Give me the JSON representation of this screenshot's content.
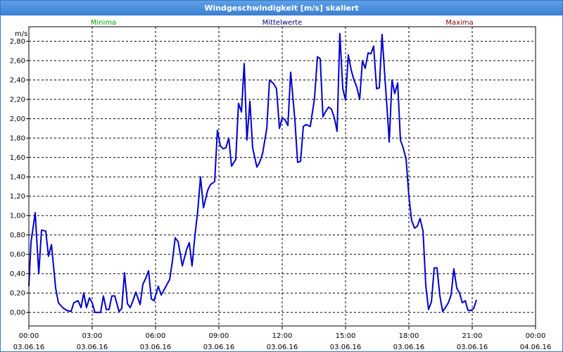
{
  "window": {
    "title": "Windgeschwindigkeit [m/s] skaliert"
  },
  "chart_data": {
    "type": "line",
    "title": "Windgeschwindigkeit [m/s] skaliert",
    "ylabel": "m/s",
    "xlabel": "",
    "legend": {
      "placement": "top",
      "entries": [
        {
          "name": "Minima",
          "color": "#00a000"
        },
        {
          "name": "Mittelwerte",
          "color": "#00008b"
        },
        {
          "name": "Maxima",
          "color": "#8b0000"
        }
      ]
    },
    "grid": true,
    "ylim": [
      -0.14,
      2.95
    ],
    "xlim": [
      0,
      24
    ],
    "y_ticks": [
      "0,00",
      "0,20",
      "0,40",
      "0,60",
      "0,80",
      "1,00",
      "1,20",
      "1,40",
      "1,60",
      "1,80",
      "2,00",
      "2,20",
      "2,40",
      "2,60",
      "2,80"
    ],
    "x_ticks": [
      {
        "time": "00:00",
        "date": "03.06.16"
      },
      {
        "time": "03:00",
        "date": "03.06.16"
      },
      {
        "time": "06:00",
        "date": "03.06.16"
      },
      {
        "time": "09:00",
        "date": "03.06.16"
      },
      {
        "time": "12:00",
        "date": "03.06.16"
      },
      {
        "time": "15:00",
        "date": "03.06.16"
      },
      {
        "time": "18:00",
        "date": "03.06.16"
      },
      {
        "time": "21:00",
        "date": "03.06.16"
      },
      {
        "time": "00:00",
        "date": "04.06.16"
      }
    ],
    "series": [
      {
        "name": "Mittelwerte",
        "color": "#0000cc",
        "points": [
          [
            0.0,
            0.27
          ],
          [
            0.1,
            0.72
          ],
          [
            0.3,
            1.03
          ],
          [
            0.47,
            0.4
          ],
          [
            0.6,
            0.85
          ],
          [
            0.8,
            0.84
          ],
          [
            0.93,
            0.58
          ],
          [
            1.07,
            0.7
          ],
          [
            1.27,
            0.25
          ],
          [
            1.4,
            0.1
          ],
          [
            1.6,
            0.05
          ],
          [
            1.8,
            0.02
          ],
          [
            2.0,
            0.01
          ],
          [
            2.13,
            0.1
          ],
          [
            2.33,
            0.12
          ],
          [
            2.47,
            0.05
          ],
          [
            2.6,
            0.2
          ],
          [
            2.73,
            0.05
          ],
          [
            2.87,
            0.15
          ],
          [
            3.0,
            0.1
          ],
          [
            3.13,
            0.0
          ],
          [
            3.4,
            0.0
          ],
          [
            3.53,
            0.17
          ],
          [
            3.67,
            0.03
          ],
          [
            3.8,
            0.03
          ],
          [
            3.93,
            0.17
          ],
          [
            4.07,
            0.17
          ],
          [
            4.27,
            0.01
          ],
          [
            4.4,
            0.04
          ],
          [
            4.53,
            0.41
          ],
          [
            4.67,
            0.09
          ],
          [
            4.8,
            0.05
          ],
          [
            4.93,
            0.12
          ],
          [
            5.07,
            0.21
          ],
          [
            5.27,
            0.08
          ],
          [
            5.4,
            0.29
          ],
          [
            5.53,
            0.35
          ],
          [
            5.67,
            0.43
          ],
          [
            5.8,
            0.14
          ],
          [
            5.93,
            0.12
          ],
          [
            6.13,
            0.27
          ],
          [
            6.27,
            0.18
          ],
          [
            6.47,
            0.26
          ],
          [
            6.67,
            0.34
          ],
          [
            6.8,
            0.53
          ],
          [
            6.93,
            0.77
          ],
          [
            7.07,
            0.73
          ],
          [
            7.27,
            0.48
          ],
          [
            7.47,
            0.65
          ],
          [
            7.6,
            0.72
          ],
          [
            7.73,
            0.48
          ],
          [
            7.87,
            0.8
          ],
          [
            8.0,
            1.05
          ],
          [
            8.13,
            1.4
          ],
          [
            8.27,
            1.08
          ],
          [
            8.47,
            1.26
          ],
          [
            8.6,
            1.32
          ],
          [
            8.8,
            1.35
          ],
          [
            8.93,
            1.88
          ],
          [
            9.07,
            1.72
          ],
          [
            9.2,
            1.69
          ],
          [
            9.33,
            1.7
          ],
          [
            9.47,
            1.8
          ],
          [
            9.6,
            1.51
          ],
          [
            9.8,
            1.58
          ],
          [
            9.93,
            2.16
          ],
          [
            10.07,
            2.07
          ],
          [
            10.2,
            2.57
          ],
          [
            10.33,
            1.78
          ],
          [
            10.47,
            2.18
          ],
          [
            10.6,
            1.7
          ],
          [
            10.8,
            1.5
          ],
          [
            10.93,
            1.55
          ],
          [
            11.07,
            1.64
          ],
          [
            11.27,
            1.9
          ],
          [
            11.4,
            2.4
          ],
          [
            11.6,
            2.36
          ],
          [
            11.73,
            2.31
          ],
          [
            11.87,
            1.9
          ],
          [
            12.0,
            2.01
          ],
          [
            12.13,
            1.99
          ],
          [
            12.27,
            1.93
          ],
          [
            12.4,
            2.48
          ],
          [
            12.6,
            1.99
          ],
          [
            12.73,
            1.55
          ],
          [
            12.87,
            1.56
          ],
          [
            13.0,
            1.92
          ],
          [
            13.13,
            1.94
          ],
          [
            13.33,
            1.92
          ],
          [
            13.53,
            2.21
          ],
          [
            13.67,
            2.64
          ],
          [
            13.8,
            2.62
          ],
          [
            13.93,
            2.02
          ],
          [
            14.07,
            2.08
          ],
          [
            14.2,
            2.12
          ],
          [
            14.33,
            2.1
          ],
          [
            14.47,
            2.01
          ],
          [
            14.6,
            1.87
          ],
          [
            14.73,
            2.88
          ],
          [
            14.87,
            2.31
          ],
          [
            15.0,
            2.19
          ],
          [
            15.13,
            2.66
          ],
          [
            15.27,
            2.5
          ],
          [
            15.4,
            2.4
          ],
          [
            15.53,
            2.33
          ],
          [
            15.67,
            2.2
          ],
          [
            15.8,
            2.6
          ],
          [
            15.93,
            2.52
          ],
          [
            16.07,
            2.68
          ],
          [
            16.2,
            2.67
          ],
          [
            16.33,
            2.75
          ],
          [
            16.47,
            2.31
          ],
          [
            16.6,
            2.32
          ],
          [
            16.73,
            2.87
          ],
          [
            16.87,
            2.41
          ],
          [
            17.0,
            2.0
          ],
          [
            17.07,
            1.76
          ],
          [
            17.2,
            2.4
          ],
          [
            17.33,
            2.26
          ],
          [
            17.47,
            2.37
          ],
          [
            17.6,
            1.78
          ],
          [
            17.73,
            1.7
          ],
          [
            17.87,
            1.58
          ],
          [
            18.0,
            1.2
          ],
          [
            18.13,
            0.95
          ],
          [
            18.27,
            0.87
          ],
          [
            18.4,
            0.89
          ],
          [
            18.53,
            0.97
          ],
          [
            18.67,
            0.84
          ],
          [
            18.8,
            0.28
          ],
          [
            18.93,
            0.03
          ],
          [
            19.07,
            0.11
          ],
          [
            19.2,
            0.46
          ],
          [
            19.33,
            0.46
          ],
          [
            19.47,
            0.17
          ],
          [
            19.6,
            0.01
          ],
          [
            19.73,
            0.05
          ],
          [
            19.87,
            0.1
          ],
          [
            20.0,
            0.18
          ],
          [
            20.13,
            0.45
          ],
          [
            20.27,
            0.25
          ],
          [
            20.4,
            0.2
          ],
          [
            20.53,
            0.1
          ],
          [
            20.67,
            0.12
          ],
          [
            20.8,
            0.02
          ],
          [
            20.93,
            0.02
          ],
          [
            21.07,
            0.04
          ],
          [
            21.2,
            0.13
          ]
        ]
      }
    ]
  }
}
